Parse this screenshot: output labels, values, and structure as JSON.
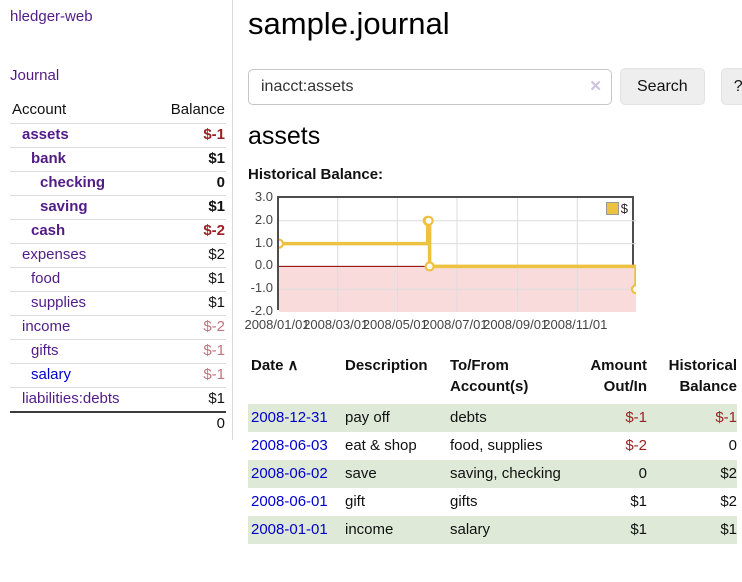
{
  "app": {
    "title": "hledger-web",
    "nav_journal": "Journal"
  },
  "sidebar": {
    "accounts": {
      "col_account": "Account",
      "col_balance": "Balance",
      "rows": [
        {
          "name": "assets",
          "balance": "$-1",
          "indent": 1,
          "emph": true,
          "negative": "strong"
        },
        {
          "name": "bank",
          "balance": "$1",
          "indent": 2,
          "emph": true,
          "negative": "none"
        },
        {
          "name": "checking",
          "balance": "0",
          "indent": 3,
          "emph": true,
          "negative": "none"
        },
        {
          "name": "saving",
          "balance": "$1",
          "indent": 3,
          "emph": true,
          "negative": "none"
        },
        {
          "name": "cash",
          "balance": "$-2",
          "indent": 2,
          "emph": true,
          "negative": "strong"
        },
        {
          "name": "expenses",
          "balance": "$2",
          "indent": 1,
          "emph": false,
          "negative": "none"
        },
        {
          "name": "food",
          "balance": "$1",
          "indent": 2,
          "emph": false,
          "negative": "none"
        },
        {
          "name": "supplies",
          "balance": "$1",
          "indent": 2,
          "emph": false,
          "negative": "none"
        },
        {
          "name": "income",
          "balance": "$-2",
          "indent": 1,
          "emph": false,
          "negative": "soft"
        },
        {
          "name": "gifts",
          "balance": "$-1",
          "indent": 2,
          "emph": false,
          "negative": "soft"
        },
        {
          "name": "salary",
          "balance": "$-1",
          "indent": 2,
          "emph": false,
          "negative": "soft",
          "link_color": "blue"
        },
        {
          "name": "liabilities:debts",
          "balance": "$1",
          "indent": 1,
          "emph": false,
          "negative": "none"
        }
      ],
      "total": "0"
    }
  },
  "header": {
    "title": "sample.journal"
  },
  "search": {
    "value": "inacct:assets",
    "clear_icon": "✕",
    "search_button": "Search",
    "help_button": "?"
  },
  "account_page": {
    "heading": "assets",
    "chart_heading": "Historical Balance:"
  },
  "chart_data": {
    "type": "line",
    "title": "Historical Balance:",
    "steps": true,
    "x_min": "2008-01-01",
    "x_max": "2008-12-31",
    "ylim": [
      -2,
      3
    ],
    "grid": true,
    "legend_position": "top-right",
    "series": [
      {
        "name": "$",
        "color": "#edc240",
        "points": [
          {
            "date": "2008-01-01",
            "value": 1
          },
          {
            "date": "2008-06-01",
            "value": 2
          },
          {
            "date": "2008-06-02",
            "value": 2
          },
          {
            "date": "2008-06-03",
            "value": 0
          },
          {
            "date": "2008-12-31",
            "value": -1
          }
        ]
      }
    ],
    "y_ticks": [
      {
        "label": "3.0",
        "value": 3
      },
      {
        "label": "2.0",
        "value": 2
      },
      {
        "label": "1.0",
        "value": 1
      },
      {
        "label": "0.0",
        "value": 0
      },
      {
        "label": "-1.0",
        "value": -1
      },
      {
        "label": "-2.0",
        "value": -2
      }
    ],
    "x_ticks": [
      {
        "label": "2008/01/01",
        "date": "2008-01-01"
      },
      {
        "label": "2008/03/01",
        "date": "2008-03-01"
      },
      {
        "label": "2008/05/01",
        "date": "2008-05-01"
      },
      {
        "label": "2008/07/01",
        "date": "2008-07-01"
      },
      {
        "label": "2008/09/01",
        "date": "2008-09-01"
      },
      {
        "label": "2008/11/01",
        "date": "2008-11-01"
      }
    ],
    "zero_line_color": "#8b0000",
    "negative_region_color": "#fadbdb",
    "grid_color": "#dcdcdc"
  },
  "register": {
    "headers": {
      "date": "Date",
      "sort_arrow": "∧",
      "description": "Description",
      "accounts": "To/From Account(s)",
      "amount": "Amount Out/In",
      "balance": "Historical Balance"
    },
    "rows": [
      {
        "date": "2008-12-31",
        "description": "pay off",
        "accounts": "debts",
        "amount": "$-1",
        "balance": "$-1"
      },
      {
        "date": "2008-06-03",
        "description": "eat & shop",
        "accounts": "food, supplies",
        "amount": "$-2",
        "balance": "0"
      },
      {
        "date": "2008-06-02",
        "description": "save",
        "accounts": "saving, checking",
        "amount": "0",
        "balance": "$2"
      },
      {
        "date": "2008-06-01",
        "description": "gift",
        "accounts": "gifts",
        "amount": "$1",
        "balance": "$2"
      },
      {
        "date": "2008-01-01",
        "description": "income",
        "accounts": "salary",
        "amount": "$1",
        "balance": "$1"
      }
    ]
  }
}
